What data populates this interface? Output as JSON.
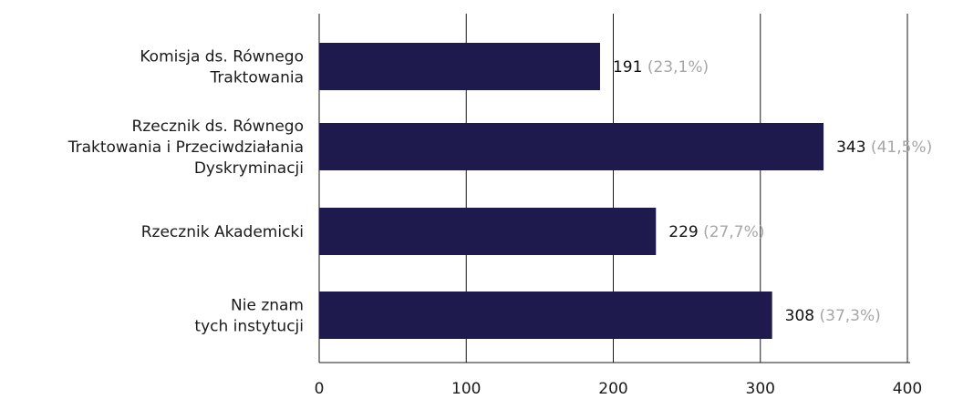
{
  "chart_data": {
    "type": "bar",
    "orientation": "horizontal",
    "categories": [
      [
        "Komisja ds. Równego",
        "Traktowania"
      ],
      [
        "Rzecznik ds. Równego",
        "Traktowania i Przeciwdziałania",
        "Dyskryminacji"
      ],
      [
        "Rzecznik Akademicki"
      ],
      [
        "Nie znam",
        "tych instytucji"
      ]
    ],
    "values": [
      191,
      343,
      229,
      308
    ],
    "percent_labels": [
      "(23,1%)",
      "(41,5%)",
      "(27,7%)",
      "(37,3%)"
    ],
    "xlim": [
      0,
      400
    ],
    "xticks": [
      0,
      100,
      200,
      300,
      400
    ],
    "grid": true,
    "bar_color": "#1e1a4d",
    "percent_color": "#a6a6a6"
  }
}
